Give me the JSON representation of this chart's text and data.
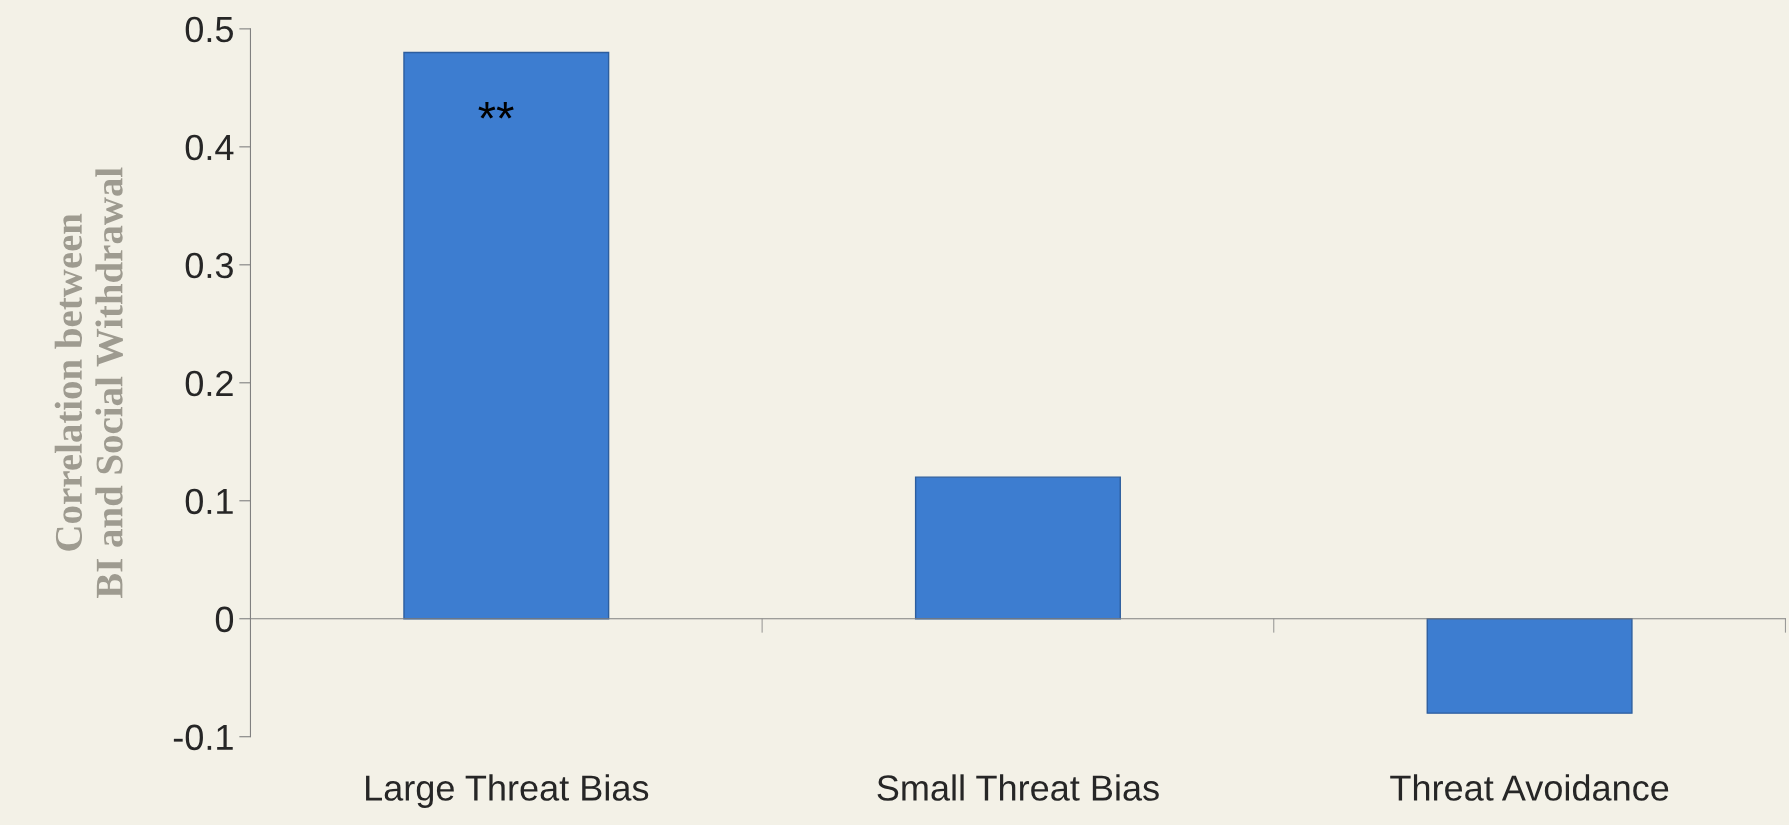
{
  "chart_data": {
    "type": "bar",
    "ylabel": "Correlation between\nBI and Social Withdrawal",
    "categories": [
      "Large Threat Bias",
      "Small Threat Bias",
      "Threat Avoidance"
    ],
    "values": [
      0.48,
      0.12,
      -0.08
    ],
    "color": "#3d7dd0",
    "ylim": [
      -0.1,
      0.5
    ],
    "yticks": [
      -0.1,
      0,
      0.1,
      0.2,
      0.3,
      0.4,
      0.5
    ],
    "annotations": [
      "**"
    ]
  }
}
